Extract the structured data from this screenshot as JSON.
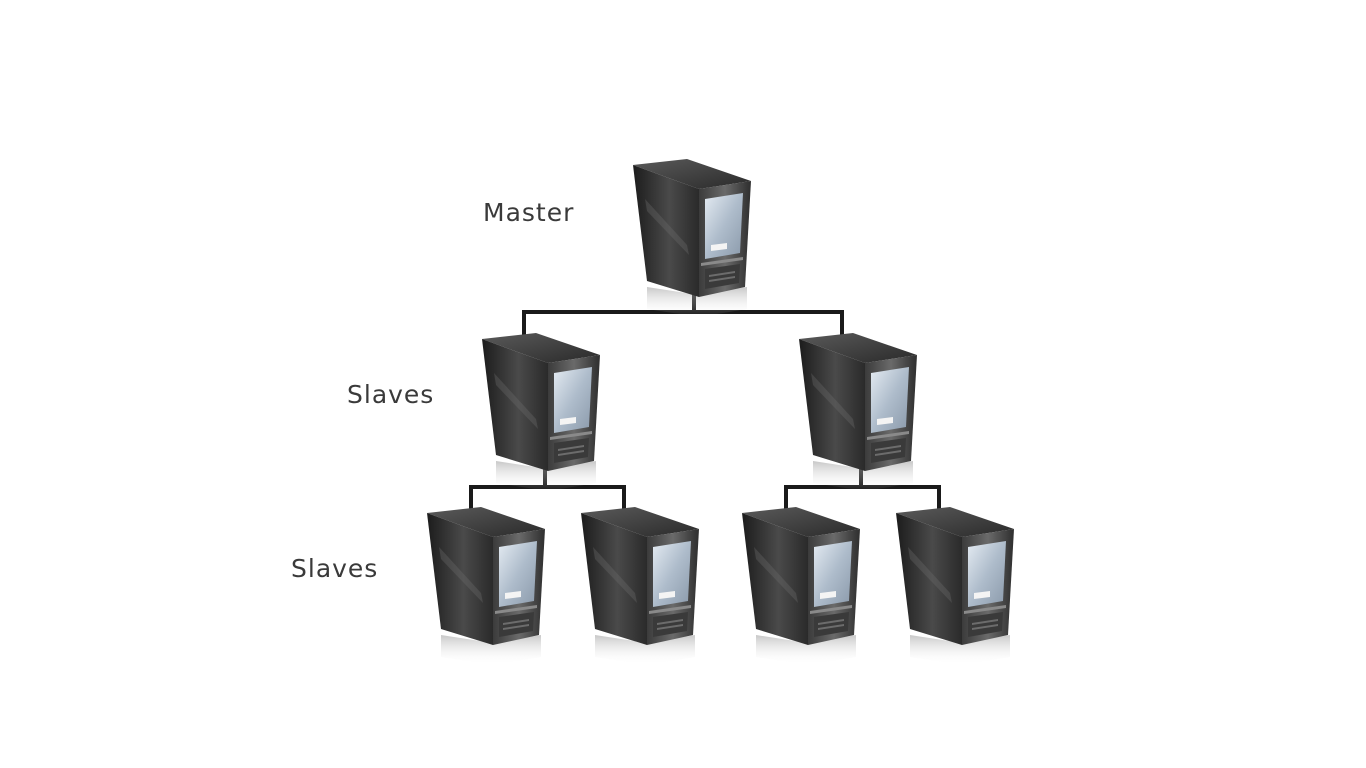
{
  "diagram": {
    "levels": [
      {
        "label": "Master"
      },
      {
        "label": "Slaves"
      },
      {
        "label": "Slaves"
      }
    ],
    "colors": {
      "connector": "#1a1a1a",
      "tower_dark": "#2b2b2b",
      "tower_mid": "#555555",
      "panel_light": "#c9d4e0",
      "background": "#ffffff"
    },
    "icon": "server-tower-icon"
  }
}
